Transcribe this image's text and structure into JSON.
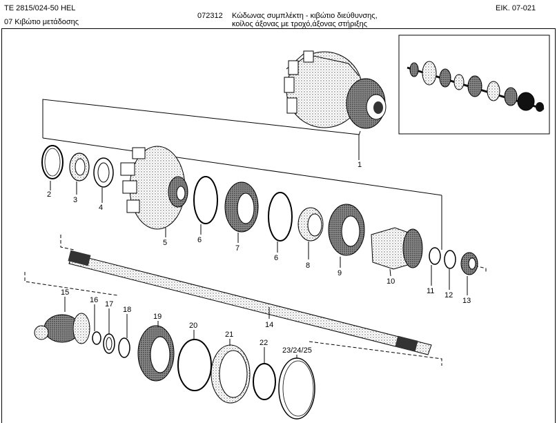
{
  "header": {
    "model": "TE 2815/024-50 HEL",
    "group": "07  Κιβώτιο μετάδοσης",
    "code": "072312",
    "title_line1": "Κώδωνας συμπλέκτη - κιβώτιο διεύθυνσης,",
    "title_line2": "κοίλος άξονας με τροχό,άξονας στήριξης",
    "figure_ref": "ΕΙΚ. 07-021"
  },
  "callouts": [
    "1",
    "2",
    "3",
    "4",
    "5",
    "6",
    "7",
    "6",
    "8",
    "9",
    "10",
    "11",
    "12",
    "13",
    "14",
    "15",
    "16",
    "17",
    "18",
    "19",
    "20",
    "21",
    "22",
    "23/24/25"
  ]
}
